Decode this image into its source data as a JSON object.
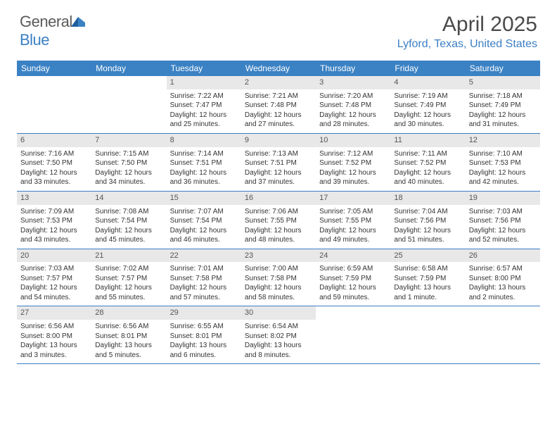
{
  "logo": {
    "part1": "General",
    "part2": "Blue"
  },
  "title": "April 2025",
  "location": "Lyford, Texas, United States",
  "colors": {
    "header_bg": "#3b82c4",
    "header_text": "#ffffff",
    "daynum_bg": "#e8e8e8",
    "border": "#3b7fc4",
    "body_text": "#333333",
    "title_text": "#4a4a4a",
    "location_text": "#3b7fc4"
  },
  "typography": {
    "title_fontsize": 30,
    "location_fontsize": 16,
    "weekday_fontsize": 12,
    "daynum_fontsize": 11,
    "body_fontsize": 10
  },
  "weekdays": [
    "Sunday",
    "Monday",
    "Tuesday",
    "Wednesday",
    "Thursday",
    "Friday",
    "Saturday"
  ],
  "weeks": [
    [
      {
        "n": "",
        "sunrise": "",
        "sunset": "",
        "daylight": ""
      },
      {
        "n": "",
        "sunrise": "",
        "sunset": "",
        "daylight": ""
      },
      {
        "n": "1",
        "sunrise": "Sunrise: 7:22 AM",
        "sunset": "Sunset: 7:47 PM",
        "daylight": "Daylight: 12 hours and 25 minutes."
      },
      {
        "n": "2",
        "sunrise": "Sunrise: 7:21 AM",
        "sunset": "Sunset: 7:48 PM",
        "daylight": "Daylight: 12 hours and 27 minutes."
      },
      {
        "n": "3",
        "sunrise": "Sunrise: 7:20 AM",
        "sunset": "Sunset: 7:48 PM",
        "daylight": "Daylight: 12 hours and 28 minutes."
      },
      {
        "n": "4",
        "sunrise": "Sunrise: 7:19 AM",
        "sunset": "Sunset: 7:49 PM",
        "daylight": "Daylight: 12 hours and 30 minutes."
      },
      {
        "n": "5",
        "sunrise": "Sunrise: 7:18 AM",
        "sunset": "Sunset: 7:49 PM",
        "daylight": "Daylight: 12 hours and 31 minutes."
      }
    ],
    [
      {
        "n": "6",
        "sunrise": "Sunrise: 7:16 AM",
        "sunset": "Sunset: 7:50 PM",
        "daylight": "Daylight: 12 hours and 33 minutes."
      },
      {
        "n": "7",
        "sunrise": "Sunrise: 7:15 AM",
        "sunset": "Sunset: 7:50 PM",
        "daylight": "Daylight: 12 hours and 34 minutes."
      },
      {
        "n": "8",
        "sunrise": "Sunrise: 7:14 AM",
        "sunset": "Sunset: 7:51 PM",
        "daylight": "Daylight: 12 hours and 36 minutes."
      },
      {
        "n": "9",
        "sunrise": "Sunrise: 7:13 AM",
        "sunset": "Sunset: 7:51 PM",
        "daylight": "Daylight: 12 hours and 37 minutes."
      },
      {
        "n": "10",
        "sunrise": "Sunrise: 7:12 AM",
        "sunset": "Sunset: 7:52 PM",
        "daylight": "Daylight: 12 hours and 39 minutes."
      },
      {
        "n": "11",
        "sunrise": "Sunrise: 7:11 AM",
        "sunset": "Sunset: 7:52 PM",
        "daylight": "Daylight: 12 hours and 40 minutes."
      },
      {
        "n": "12",
        "sunrise": "Sunrise: 7:10 AM",
        "sunset": "Sunset: 7:53 PM",
        "daylight": "Daylight: 12 hours and 42 minutes."
      }
    ],
    [
      {
        "n": "13",
        "sunrise": "Sunrise: 7:09 AM",
        "sunset": "Sunset: 7:53 PM",
        "daylight": "Daylight: 12 hours and 43 minutes."
      },
      {
        "n": "14",
        "sunrise": "Sunrise: 7:08 AM",
        "sunset": "Sunset: 7:54 PM",
        "daylight": "Daylight: 12 hours and 45 minutes."
      },
      {
        "n": "15",
        "sunrise": "Sunrise: 7:07 AM",
        "sunset": "Sunset: 7:54 PM",
        "daylight": "Daylight: 12 hours and 46 minutes."
      },
      {
        "n": "16",
        "sunrise": "Sunrise: 7:06 AM",
        "sunset": "Sunset: 7:55 PM",
        "daylight": "Daylight: 12 hours and 48 minutes."
      },
      {
        "n": "17",
        "sunrise": "Sunrise: 7:05 AM",
        "sunset": "Sunset: 7:55 PM",
        "daylight": "Daylight: 12 hours and 49 minutes."
      },
      {
        "n": "18",
        "sunrise": "Sunrise: 7:04 AM",
        "sunset": "Sunset: 7:56 PM",
        "daylight": "Daylight: 12 hours and 51 minutes."
      },
      {
        "n": "19",
        "sunrise": "Sunrise: 7:03 AM",
        "sunset": "Sunset: 7:56 PM",
        "daylight": "Daylight: 12 hours and 52 minutes."
      }
    ],
    [
      {
        "n": "20",
        "sunrise": "Sunrise: 7:03 AM",
        "sunset": "Sunset: 7:57 PM",
        "daylight": "Daylight: 12 hours and 54 minutes."
      },
      {
        "n": "21",
        "sunrise": "Sunrise: 7:02 AM",
        "sunset": "Sunset: 7:57 PM",
        "daylight": "Daylight: 12 hours and 55 minutes."
      },
      {
        "n": "22",
        "sunrise": "Sunrise: 7:01 AM",
        "sunset": "Sunset: 7:58 PM",
        "daylight": "Daylight: 12 hours and 57 minutes."
      },
      {
        "n": "23",
        "sunrise": "Sunrise: 7:00 AM",
        "sunset": "Sunset: 7:58 PM",
        "daylight": "Daylight: 12 hours and 58 minutes."
      },
      {
        "n": "24",
        "sunrise": "Sunrise: 6:59 AM",
        "sunset": "Sunset: 7:59 PM",
        "daylight": "Daylight: 12 hours and 59 minutes."
      },
      {
        "n": "25",
        "sunrise": "Sunrise: 6:58 AM",
        "sunset": "Sunset: 7:59 PM",
        "daylight": "Daylight: 13 hours and 1 minute."
      },
      {
        "n": "26",
        "sunrise": "Sunrise: 6:57 AM",
        "sunset": "Sunset: 8:00 PM",
        "daylight": "Daylight: 13 hours and 2 minutes."
      }
    ],
    [
      {
        "n": "27",
        "sunrise": "Sunrise: 6:56 AM",
        "sunset": "Sunset: 8:00 PM",
        "daylight": "Daylight: 13 hours and 3 minutes."
      },
      {
        "n": "28",
        "sunrise": "Sunrise: 6:56 AM",
        "sunset": "Sunset: 8:01 PM",
        "daylight": "Daylight: 13 hours and 5 minutes."
      },
      {
        "n": "29",
        "sunrise": "Sunrise: 6:55 AM",
        "sunset": "Sunset: 8:01 PM",
        "daylight": "Daylight: 13 hours and 6 minutes."
      },
      {
        "n": "30",
        "sunrise": "Sunrise: 6:54 AM",
        "sunset": "Sunset: 8:02 PM",
        "daylight": "Daylight: 13 hours and 8 minutes."
      },
      {
        "n": "",
        "sunrise": "",
        "sunset": "",
        "daylight": ""
      },
      {
        "n": "",
        "sunrise": "",
        "sunset": "",
        "daylight": ""
      },
      {
        "n": "",
        "sunrise": "",
        "sunset": "",
        "daylight": ""
      }
    ]
  ]
}
